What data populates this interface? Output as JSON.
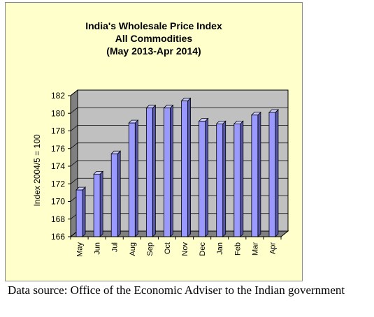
{
  "colors": {
    "background": "#ffffcc",
    "plot_back": "#c0c0c0",
    "plot_floor": "#808080",
    "bar_front": "#9999ff",
    "bar_side": "#5555aa",
    "bar_top": "#ccccff"
  },
  "chart_data": {
    "type": "bar",
    "title": [
      "India's  Wholesale Price Index",
      "All Commodities",
      "(May 2013-Apr 2014)"
    ],
    "xlabel": "",
    "ylabel": "Index 2004/5 = 100",
    "categories": [
      "May",
      "Jun",
      "Jul",
      "Aug",
      "Sep",
      "Oct",
      "Nov",
      "Dec",
      "Jan",
      "Feb",
      "Mar",
      "Apr"
    ],
    "values": [
      171.3,
      173.1,
      175.4,
      178.9,
      180.6,
      180.6,
      181.4,
      179.1,
      178.8,
      178.8,
      179.8,
      180.1
    ],
    "ylim": [
      166,
      182
    ],
    "yticks": [
      "166",
      "168",
      "170",
      "172",
      "174",
      "176",
      "178",
      "180",
      "182"
    ],
    "grid": true,
    "legend": "none"
  },
  "source": "Data source: Office of the Economic Adviser to the Indian government"
}
